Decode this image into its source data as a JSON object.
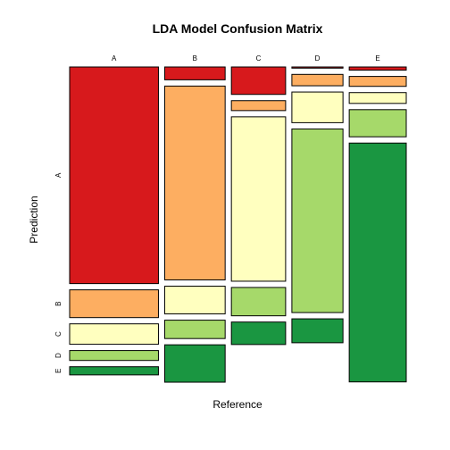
{
  "chart_data": {
    "type": "mosaic",
    "title": "LDA Model Confusion Matrix",
    "xlabel": "Reference",
    "ylabel": "Prediction",
    "reference_levels": [
      "A",
      "B",
      "C",
      "D",
      "E"
    ],
    "prediction_levels": [
      "A",
      "B",
      "C",
      "D",
      "E"
    ],
    "column_proportions": [
      0.285,
      0.194,
      0.174,
      0.164,
      0.183
    ],
    "cell_proportions": [
      [
        0.742,
        0.095,
        0.07,
        0.034,
        0.028
      ],
      [
        0.044,
        0.664,
        0.095,
        0.063,
        0.128
      ],
      [
        0.094,
        0.034,
        0.563,
        0.097,
        0.077
      ],
      [
        0.004,
        0.039,
        0.105,
        0.629,
        0.082
      ],
      [
        0.011,
        0.034,
        0.037,
        0.093,
        0.818
      ]
    ],
    "colors": [
      "#d7191c",
      "#fdae61",
      "#ffffbf",
      "#a6d96a",
      "#1a9641"
    ],
    "grid": false,
    "legend": "none"
  }
}
